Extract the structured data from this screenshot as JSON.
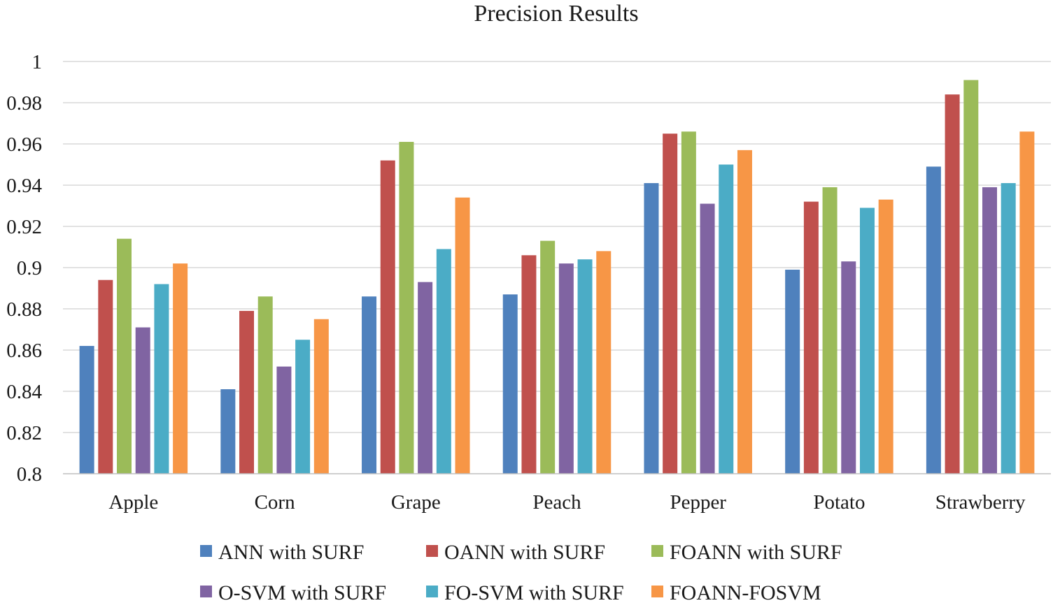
{
  "chart_data": {
    "type": "bar",
    "title": "Precision Results",
    "xlabel": "",
    "ylabel": "",
    "ylim": [
      0.8,
      1.0
    ],
    "y_ticks": [
      "0.8",
      "0.82",
      "0.84",
      "0.86",
      "0.88",
      "0.9",
      "0.92",
      "0.94",
      "0.96",
      "0.98",
      "1"
    ],
    "y_tick_values": [
      0.8,
      0.82,
      0.84,
      0.86,
      0.88,
      0.9,
      0.92,
      0.94,
      0.96,
      0.98,
      1.0
    ],
    "grid": true,
    "legend_position": "bottom",
    "categories": [
      "Apple",
      "Corn",
      "Grape",
      "Peach",
      "Pepper",
      "Potato",
      "Strawberry"
    ],
    "series": [
      {
        "name": "ANN with SURF",
        "color": "#4f81bd",
        "values": [
          0.862,
          0.841,
          0.886,
          0.887,
          0.941,
          0.899,
          0.949
        ]
      },
      {
        "name": "OANN with SURF",
        "color": "#c0504d",
        "values": [
          0.894,
          0.879,
          0.952,
          0.906,
          0.965,
          0.932,
          0.984
        ]
      },
      {
        "name": "FOANN with SURF",
        "color": "#9bbb59",
        "values": [
          0.914,
          0.886,
          0.961,
          0.913,
          0.966,
          0.939,
          0.991
        ]
      },
      {
        "name": "O-SVM with SURF",
        "color": "#8064a2",
        "values": [
          0.871,
          0.852,
          0.893,
          0.902,
          0.931,
          0.903,
          0.939
        ]
      },
      {
        "name": "FO-SVM with SURF",
        "color": "#4bacc6",
        "values": [
          0.892,
          0.865,
          0.909,
          0.904,
          0.95,
          0.929,
          0.941
        ]
      },
      {
        "name": "FOANN-FOSVM",
        "color": "#f79646",
        "values": [
          0.902,
          0.875,
          0.934,
          0.908,
          0.957,
          0.933,
          0.966
        ]
      }
    ]
  }
}
